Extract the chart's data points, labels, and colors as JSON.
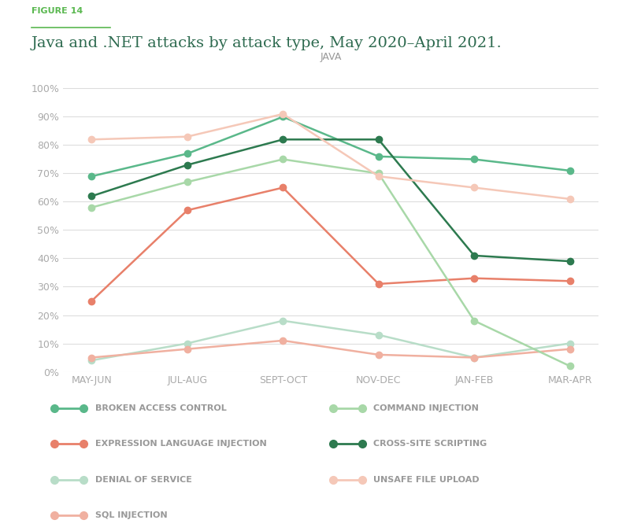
{
  "title_label": "FIGURE 14",
  "title": "Java and .NET attacks by attack type, May 2020–April 2021.",
  "subtitle": "JAVA",
  "x_labels": [
    "MAY-JUN",
    "JUL-AUG",
    "SEPT-OCT",
    "NOV-DEC",
    "JAN-FEB",
    "MAR-APR"
  ],
  "y_ticks": [
    0,
    10,
    20,
    30,
    40,
    50,
    60,
    70,
    80,
    90,
    100
  ],
  "series": {
    "broken_access_control": {
      "label": "BROKEN ACCESS CONTROL",
      "color": "#5ab88a",
      "values": [
        69,
        77,
        90,
        76,
        75,
        71
      ]
    },
    "expression_language_injection": {
      "label": "EXPRESSION LANGUAGE INJECTION",
      "color": "#e8806a",
      "values": [
        25,
        57,
        65,
        31,
        33,
        32
      ]
    },
    "denial_of_service": {
      "label": "DENIAL OF SERVICE",
      "color": "#b8ddc8",
      "values": [
        4,
        10,
        18,
        13,
        5,
        10
      ]
    },
    "sql_injection": {
      "label": "SQL INJECTION",
      "color": "#f0b0a0",
      "values": [
        5,
        8,
        11,
        6,
        5,
        8
      ]
    },
    "command_injection": {
      "label": "COMMAND INJECTION",
      "color": "#a8d8a8",
      "values": [
        58,
        67,
        75,
        70,
        18,
        2
      ]
    },
    "cross_site_scripting": {
      "label": "CROSS-SITE SCRIPTING",
      "color": "#2d7a4f",
      "values": [
        62,
        73,
        82,
        82,
        41,
        39
      ]
    },
    "unsafe_file_upload": {
      "label": "UNSAFE FILE UPLOAD",
      "color": "#f5c8b8",
      "values": [
        82,
        83,
        91,
        69,
        65,
        61
      ]
    }
  },
  "background_color": "#ffffff",
  "grid_color": "#dddddd",
  "title_color": "#2d6a4f",
  "subtitle_color": "#999999",
  "axis_label_color": "#aaaaaa",
  "legend_label_color": "#999999",
  "figure_label_color": "#5ab850"
}
